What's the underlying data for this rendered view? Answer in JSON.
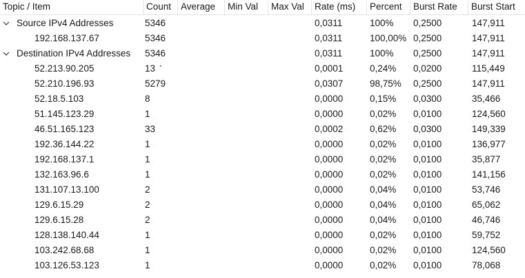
{
  "columns": [
    "Topic / Item",
    "Count",
    "Average",
    "Min Val",
    "Max Val",
    "Rate (ms)",
    "Percent",
    "Burst Rate",
    "Burst Start"
  ],
  "rows": [
    {
      "level": 0,
      "expanded": true,
      "topic": "Source IPv4 Addresses",
      "count": "5346",
      "average": "",
      "min_val": "",
      "max_val": "",
      "rate": "0,0311",
      "percent": "100%",
      "burst_rate": "0,2500",
      "burst_start": "147,911"
    },
    {
      "level": 1,
      "expanded": false,
      "topic": "192.168.137.67",
      "count": "5346",
      "average": "",
      "min_val": "",
      "max_val": "",
      "rate": "0,0311",
      "percent": "100,00%",
      "burst_rate": "0,2500",
      "burst_start": "147,911"
    },
    {
      "level": 0,
      "expanded": true,
      "topic": "Destination IPv4 Addresses",
      "count": "5346",
      "average": "",
      "min_val": "",
      "max_val": "",
      "rate": "0,0311",
      "percent": "100%",
      "burst_rate": "0,2500",
      "burst_start": "147,911"
    },
    {
      "level": 1,
      "expanded": false,
      "topic": "52.213.90.205",
      "count": "13",
      "average": "",
      "min_val": "",
      "max_val": "",
      "rate": "0,0001",
      "percent": "0,24%",
      "burst_rate": "0,0200",
      "burst_start": "115,449"
    },
    {
      "level": 1,
      "expanded": false,
      "topic": "52.210.196.93",
      "count": "5279",
      "average": "",
      "min_val": "",
      "max_val": "",
      "rate": "0,0307",
      "percent": "98,75%",
      "burst_rate": "0,2500",
      "burst_start": "147,911"
    },
    {
      "level": 1,
      "expanded": false,
      "topic": "52.18.5.103",
      "count": "8",
      "average": "",
      "min_val": "",
      "max_val": "",
      "rate": "0,0000",
      "percent": "0,15%",
      "burst_rate": "0,0300",
      "burst_start": "35,466"
    },
    {
      "level": 1,
      "expanded": false,
      "topic": "51.145.123.29",
      "count": "1",
      "average": "",
      "min_val": "",
      "max_val": "",
      "rate": "0,0000",
      "percent": "0,02%",
      "burst_rate": "0,0100",
      "burst_start": "124,560"
    },
    {
      "level": 1,
      "expanded": false,
      "topic": "46.51.165.123",
      "count": "33",
      "average": "",
      "min_val": "",
      "max_val": "",
      "rate": "0,0002",
      "percent": "0,62%",
      "burst_rate": "0,0300",
      "burst_start": "149,339"
    },
    {
      "level": 1,
      "expanded": false,
      "topic": "192.36.144.22",
      "count": "1",
      "average": "",
      "min_val": "",
      "max_val": "",
      "rate": "0,0000",
      "percent": "0,02%",
      "burst_rate": "0,0100",
      "burst_start": "136,977"
    },
    {
      "level": 1,
      "expanded": false,
      "topic": "192.168.137.1",
      "count": "1",
      "average": "",
      "min_val": "",
      "max_val": "",
      "rate": "0,0000",
      "percent": "0,02%",
      "burst_rate": "0,0100",
      "burst_start": "35,877"
    },
    {
      "level": 1,
      "expanded": false,
      "topic": "132.163.96.6",
      "count": "1",
      "average": "",
      "min_val": "",
      "max_val": "",
      "rate": "0,0000",
      "percent": "0,02%",
      "burst_rate": "0,0100",
      "burst_start": "141,156"
    },
    {
      "level": 1,
      "expanded": false,
      "topic": "131.107.13.100",
      "count": "2",
      "average": "",
      "min_val": "",
      "max_val": "",
      "rate": "0,0000",
      "percent": "0,04%",
      "burst_rate": "0,0100",
      "burst_start": "53,746"
    },
    {
      "level": 1,
      "expanded": false,
      "topic": "129.6.15.29",
      "count": "2",
      "average": "",
      "min_val": "",
      "max_val": "",
      "rate": "0,0000",
      "percent": "0,04%",
      "burst_rate": "0,0100",
      "burst_start": "65,062"
    },
    {
      "level": 1,
      "expanded": false,
      "topic": "129.6.15.28",
      "count": "2",
      "average": "",
      "min_val": "",
      "max_val": "",
      "rate": "0,0000",
      "percent": "0,04%",
      "burst_rate": "0,0100",
      "burst_start": "46,746"
    },
    {
      "level": 1,
      "expanded": false,
      "topic": "128.138.140.44",
      "count": "1",
      "average": "",
      "min_val": "",
      "max_val": "",
      "rate": "0,0000",
      "percent": "0,02%",
      "burst_rate": "0,0100",
      "burst_start": "59,752"
    },
    {
      "level": 1,
      "expanded": false,
      "topic": "103.242.68.68",
      "count": "1",
      "average": "",
      "min_val": "",
      "max_val": "",
      "rate": "0,0000",
      "percent": "0,02%",
      "burst_rate": "0,0100",
      "burst_start": "124,560"
    },
    {
      "level": 1,
      "expanded": false,
      "topic": "103.126.53.123",
      "count": "1",
      "average": "",
      "min_val": "",
      "max_val": "",
      "rate": "0,0000",
      "percent": "0,02%",
      "burst_rate": "0,0100",
      "burst_start": "78,068"
    }
  ]
}
